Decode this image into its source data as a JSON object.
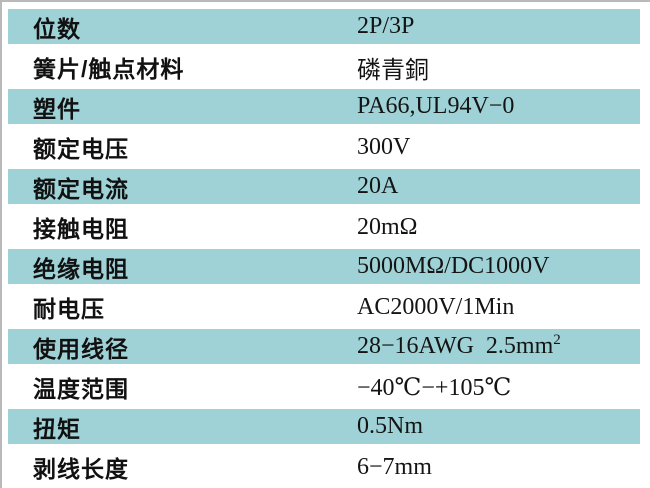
{
  "colors": {
    "row_highlight": "#9fd2d6",
    "row_plain": "#ffffff",
    "label_text": "#111111",
    "value_text": "#141414",
    "page_border": "#b9b9b9"
  },
  "table": {
    "rows": [
      {
        "label": "位数",
        "value": "2P/3P",
        "value_sup": "",
        "highlight": true
      },
      {
        "label": "簧片/触点材料",
        "value": "磷青銅",
        "value_sup": "",
        "highlight": false
      },
      {
        "label": "塑件",
        "value": "PA66,UL94V−0",
        "value_sup": "",
        "highlight": true
      },
      {
        "label": "额定电压",
        "value": "300V",
        "value_sup": "",
        "highlight": false
      },
      {
        "label": "额定电流",
        "value": "20A",
        "value_sup": "",
        "highlight": true
      },
      {
        "label": "接触电阻",
        "value": "20mΩ",
        "value_sup": "",
        "highlight": false
      },
      {
        "label": "绝缘电阻",
        "value": "5000MΩ/DC1000V",
        "value_sup": "",
        "highlight": true
      },
      {
        "label": "耐电压",
        "value": "AC2000V/1Min",
        "value_sup": "",
        "highlight": false
      },
      {
        "label": "使用线径",
        "value": "28−16AWG  2.5mm",
        "value_sup": "2",
        "highlight": true
      },
      {
        "label": "温度范围",
        "value": "−40℃−+105℃",
        "value_sup": "",
        "highlight": false
      },
      {
        "label": "扭矩",
        "value": "0.5Nm",
        "value_sup": "",
        "highlight": true
      },
      {
        "label": "剥线长度",
        "value": "6−7mm",
        "value_sup": "",
        "highlight": false
      }
    ]
  }
}
